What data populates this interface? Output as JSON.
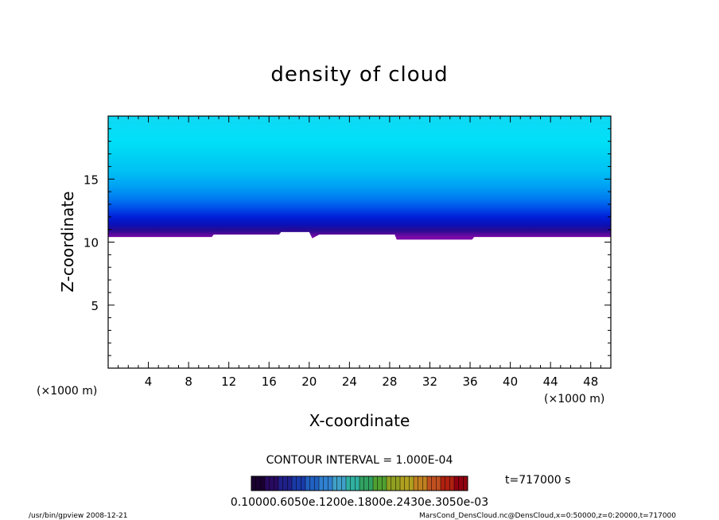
{
  "chart_data": {
    "type": "heatmap",
    "title": "density of cloud",
    "xlabel": "X-coordinate",
    "ylabel": "Z-coordinate",
    "x_unit": "(×1000 m)",
    "x_unit_right": "(×1000 m)",
    "xlim": [
      0,
      50
    ],
    "ylim": [
      0,
      20
    ],
    "x_ticks": [
      "4",
      "8",
      "12",
      "16",
      "20",
      "24",
      "28",
      "32",
      "36",
      "40",
      "44",
      "48"
    ],
    "y_ticks": [
      "5",
      "10",
      "15"
    ],
    "contour_interval": "CONTOUR INTERVAL = 1.000E-04",
    "time_label": "t=717000 s",
    "colorbar_labels": "0.10000.6050e.1200e.1800e.2430e.3050e-03",
    "footer_left": "/usr/bin/gpview   2008-12-21",
    "footer_right": "MarsCond_DensCloud.nc@DensCloud,x=0:50000,z=0:20000,t=717000",
    "cloud_base_profile": [
      {
        "x": 0,
        "z": 10.4
      },
      {
        "x": 10.3,
        "z": 10.4
      },
      {
        "x": 10.5,
        "z": 10.6
      },
      {
        "x": 17.0,
        "z": 10.6
      },
      {
        "x": 17.2,
        "z": 10.8
      },
      {
        "x": 20.0,
        "z": 10.8
      },
      {
        "x": 20.3,
        "z": 10.3
      },
      {
        "x": 21.0,
        "z": 10.6
      },
      {
        "x": 28.5,
        "z": 10.6
      },
      {
        "x": 28.7,
        "z": 10.2
      },
      {
        "x": 36.2,
        "z": 10.2
      },
      {
        "x": 36.4,
        "z": 10.4
      },
      {
        "x": 50,
        "z": 10.4
      }
    ],
    "vertical_profile": [
      {
        "z": 10.4,
        "color": "#7a0aa8"
      },
      {
        "z": 10.9,
        "color": "#2a0a90"
      },
      {
        "z": 11.4,
        "color": "#0a10b8"
      },
      {
        "z": 12.0,
        "color": "#0020d8"
      },
      {
        "z": 12.6,
        "color": "#0048e8"
      },
      {
        "z": 13.4,
        "color": "#0078f0"
      },
      {
        "z": 14.4,
        "color": "#00a0f4"
      },
      {
        "z": 15.6,
        "color": "#00c0f4"
      },
      {
        "z": 17.0,
        "color": "#00d4f4"
      },
      {
        "z": 18.0,
        "color": "#00e0f8"
      },
      {
        "z": 20.0,
        "color": "#10d8f4"
      }
    ],
    "colorbar_colors": [
      "#1a0030",
      "#280a60",
      "#20208a",
      "#1a3aa8",
      "#2060c0",
      "#3080d0",
      "#40a0c8",
      "#30b0a0",
      "#30a060",
      "#50a030",
      "#90a020",
      "#b0a020",
      "#c08020",
      "#c05020",
      "#b02010",
      "#900010"
    ]
  }
}
